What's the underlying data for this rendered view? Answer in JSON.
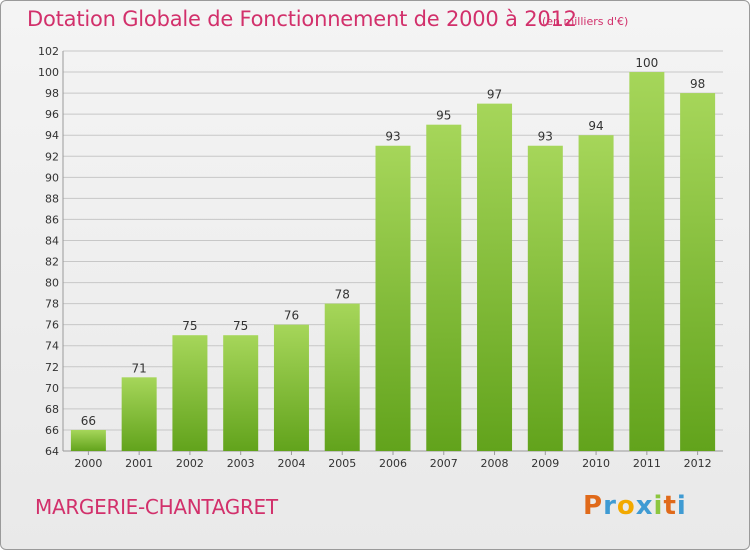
{
  "header": {
    "title": "Dotation Globale de Fonctionnement de 2000 à 2012",
    "subtitle": "(en milliers d'€)"
  },
  "footer": {
    "commune": "MARGERIE-CHANTAGRET",
    "logo_text": "Proxiti",
    "logo_colors": [
      "#e06a1a",
      "#3f9bd3",
      "#f2a900",
      "#3f9bd3",
      "#8cc63f",
      "#e06a1a",
      "#3f9bd3"
    ]
  },
  "colors": {
    "bar_top": "#a6d65a",
    "bar_bottom": "#62a31c",
    "grid": "#c7c7c7",
    "axis_text": "#333333",
    "label_text": "#333333",
    "accent": "#d2306b"
  },
  "chart_data": {
    "type": "bar",
    "categories": [
      "2000",
      "2001",
      "2002",
      "2003",
      "2004",
      "2005",
      "2006",
      "2007",
      "2008",
      "2009",
      "2010",
      "2011",
      "2012"
    ],
    "values": [
      66,
      71,
      75,
      75,
      76,
      78,
      93,
      95,
      97,
      93,
      94,
      100,
      98
    ],
    "title": "Dotation Globale de Fonctionnement de 2000 à 2012",
    "subtitle": "(en milliers d'€)",
    "xlabel": "",
    "ylabel": "",
    "ylim": [
      64,
      102
    ],
    "ytick_step": 2,
    "grid": true,
    "data_labels": true
  }
}
